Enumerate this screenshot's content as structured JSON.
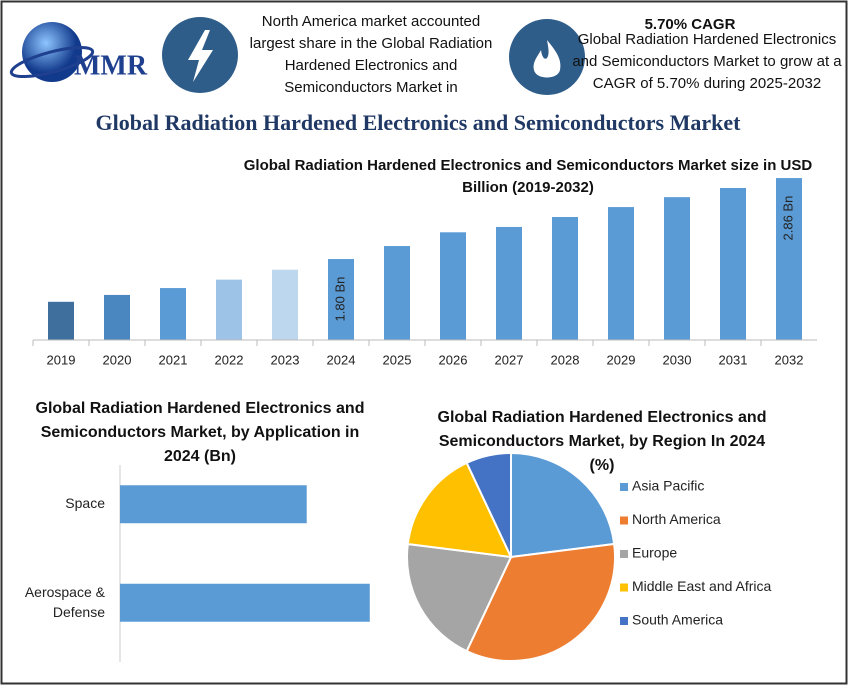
{
  "header": {
    "logo": "MMR",
    "highlight_1": "North America market accounted largest share in the Global Radiation Hardened Electronics and Semiconductors Market in",
    "cagr": "5.70% CAGR",
    "highlight_2": "Global Radiation Hardened Electronics and Semiconductors Market to grow at a CAGR of 5.70% during 2025-2032",
    "title": "Global Radiation Hardened Electronics and Semiconductors Market"
  },
  "chart_data": [
    {
      "type": "bar",
      "title": "Global Radiation Hardened Electronics and Semiconductors Market size in USD Billion (2019-2032)",
      "categories": [
        "2019",
        "2020",
        "2021",
        "2022",
        "2023",
        "2024",
        "2025",
        "2026",
        "2027",
        "2028",
        "2029",
        "2030",
        "2031",
        "2032"
      ],
      "values": [
        1.24,
        1.33,
        1.42,
        1.53,
        1.66,
        1.8,
        1.97,
        2.15,
        2.22,
        2.35,
        2.48,
        2.61,
        2.73,
        2.86
      ],
      "value_labels": [
        null,
        null,
        null,
        null,
        null,
        "1.80 Bn",
        null,
        null,
        null,
        null,
        null,
        null,
        null,
        "2.86 Bn"
      ],
      "colors": [
        "#3f6f9c",
        "#4a86c0",
        "#5b9bd5",
        "#9dc3e6",
        "#bdd7ee",
        "#5b9bd5",
        "#5b9bd5",
        "#5b9bd5",
        "#5b9bd5",
        "#5b9bd5",
        "#5b9bd5",
        "#5b9bd5",
        "#5b9bd5",
        "#5b9bd5"
      ],
      "ylim": [
        0.74,
        2.9
      ]
    },
    {
      "type": "barh",
      "title": "Global Radiation Hardened Electronics and Semiconductors Market, by Application in 2024 (Bn)",
      "categories": [
        "Space",
        "Aerospace & Defense"
      ],
      "values": [
        0.77,
        1.03
      ],
      "color": "#5b9bd5",
      "xlim": [
        0,
        1.2
      ]
    },
    {
      "type": "pie",
      "title": "Global Radiation Hardened Electronics and Semiconductors Market, by Region In 2024 (%)",
      "categories": [
        "Asia Pacific",
        "North America",
        "Europe",
        "Middle East and Africa",
        "South America"
      ],
      "values": [
        23,
        34,
        20,
        16,
        7
      ],
      "colors": [
        "#5b9bd5",
        "#ed7d31",
        "#a5a5a5",
        "#ffc000",
        "#4472c4"
      ],
      "legend": "right"
    }
  ]
}
